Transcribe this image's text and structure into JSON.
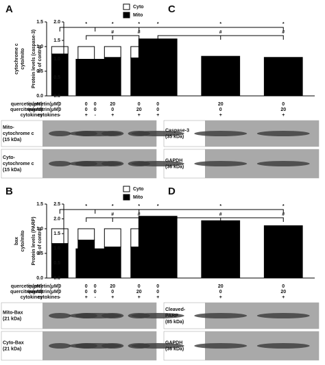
{
  "chart_data": [
    {
      "type": "stacked_bar",
      "panel": "A",
      "ylabel": [
        "cytochrome c",
        "cyto/mito"
      ],
      "series": [
        {
          "name": "Cyto",
          "color": "#ffffff",
          "values": [
            0.15,
            0.37,
            0.22,
            0.23
          ]
        },
        {
          "name": "Mito",
          "color": "#000000",
          "values": [
            0.85,
            0.63,
            0.78,
            0.77
          ]
        }
      ],
      "ylim": [
        0,
        1.5
      ],
      "yticks": [
        {
          "value": 0,
          "label": "0.0"
        },
        0.5,
        {
          "value": 1,
          "label": "1.0"
        },
        1.5
      ],
      "annotations": [
        "*",
        "*",
        "*",
        "#",
        "#"
      ],
      "treatments": [
        {
          "label": "quercetin(μM)",
          "values": [
            "0",
            "0",
            "20",
            "0"
          ]
        },
        {
          "label": "quercitrin(μM)",
          "values": [
            "0",
            "0",
            "0",
            "20"
          ]
        },
        {
          "label": "cytokines",
          "values": [
            "-",
            "+",
            "+",
            "+"
          ]
        }
      ],
      "blots": [
        {
          "label": [
            "Mito-",
            "cytochrome c",
            "(15 kDa)"
          ]
        },
        {
          "label": [
            "Cyto-",
            "cytochrome c",
            "(15 kDa)"
          ]
        }
      ]
    },
    {
      "type": "bar",
      "panel": "C",
      "ylabel": [
        "Protein levels (caspase-3)",
        "% of control"
      ],
      "color": "#000000",
      "values": [
        1.0,
        1.55,
        1.08,
        1.05
      ],
      "ylim": [
        0,
        2
      ],
      "yticks": [
        {
          "value": 0,
          "label": "0.0"
        },
        0.5,
        {
          "value": 1,
          "label": "1.0"
        },
        1.5,
        {
          "value": 2,
          "label": "2.0"
        }
      ],
      "annotations": [
        "*",
        "*",
        "*",
        "#",
        "#"
      ],
      "treatments": [
        {
          "label": "quercetin(μM)",
          "values": [
            "0",
            "0",
            "20",
            "0"
          ]
        },
        {
          "label": "quercitrin(μM)",
          "values": [
            "0",
            "0",
            "0",
            "20"
          ]
        },
        {
          "label": "cytokines",
          "values": [
            "-",
            "+",
            "+",
            "+"
          ]
        }
      ],
      "blots": [
        {
          "label": [
            "Caspase-3",
            "(35 kDa)"
          ]
        },
        {
          "label": [
            "GAPDH",
            "(36 kDa)"
          ]
        }
      ]
    },
    {
      "type": "stacked_bar",
      "panel": "B",
      "ylabel": [
        "bax",
        "cyto/mito"
      ],
      "series": [
        {
          "name": "Cyto",
          "color": "#ffffff",
          "values": [
            0.3,
            0.23,
            0.37,
            0.37
          ]
        },
        {
          "name": "Mito",
          "color": "#000000",
          "values": [
            0.7,
            0.77,
            0.63,
            0.63
          ]
        }
      ],
      "ylim": [
        0,
        1.5
      ],
      "yticks": [
        {
          "value": 0,
          "label": "0.0"
        },
        0.5,
        {
          "value": 1,
          "label": "1.0"
        },
        1.5
      ],
      "annotations": [
        "*",
        "*",
        "*",
        "#",
        "#"
      ],
      "treatments": [
        {
          "label": "quercetin(μM)",
          "values": [
            "0",
            "0",
            "20",
            "0"
          ]
        },
        {
          "label": "quercitrin(μM)",
          "values": [
            "0",
            "0",
            "0",
            "20"
          ]
        },
        {
          "label": "cytokines",
          "values": [
            "-",
            "+",
            "+",
            "+"
          ]
        }
      ],
      "blots": [
        {
          "label": [
            "Mito-Bax",
            "(21 kDa)"
          ]
        },
        {
          "label": [
            "Cyto-Bax",
            "(21 kDa)"
          ]
        }
      ]
    },
    {
      "type": "bar",
      "panel": "D",
      "ylabel": [
        "Protein levels (PARP)",
        "% of control"
      ],
      "color": "#000000",
      "values": [
        1.0,
        2.1,
        1.95,
        1.78
      ],
      "ylim": [
        0,
        2.5
      ],
      "yticks": [
        {
          "value": 0,
          "label": "0.0"
        },
        0.5,
        {
          "value": 1,
          "label": "1.0"
        },
        1.5,
        {
          "value": 2,
          "label": "2.0"
        },
        2.5
      ],
      "annotations": [
        "*",
        "*",
        "*",
        "#",
        "#"
      ],
      "treatments": [
        {
          "label": "quercetin(μM)",
          "values": [
            "0",
            "0",
            "20",
            "0"
          ]
        },
        {
          "label": "quercitrin(μM)",
          "values": [
            "0",
            "0",
            "0",
            "20"
          ]
        },
        {
          "label": "cytokines",
          "values": [
            "-",
            "+",
            "+",
            "+"
          ]
        }
      ],
      "blots": [
        {
          "label": [
            "Cleaved-",
            "PARP",
            "(85 kDa)"
          ]
        },
        {
          "label": [
            "GAPDH",
            "(36 kDa)"
          ]
        }
      ]
    }
  ]
}
